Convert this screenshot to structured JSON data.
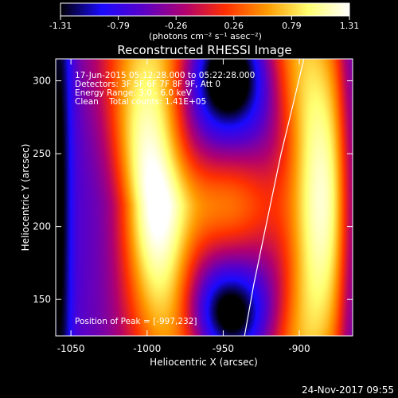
{
  "colorbar": {
    "ticks": [
      "-1.31",
      "-0.79",
      "-0.26",
      "0.26",
      "0.79",
      "1.31"
    ],
    "units_label": "(photons cm⁻² s⁻¹ asec⁻²)",
    "range": [
      -1.31,
      1.31
    ],
    "colormap": [
      "#000000",
      "#1a0aff",
      "#5a00c8",
      "#b00070",
      "#ff3000",
      "#ff9a00",
      "#ffff70",
      "#ffffff"
    ]
  },
  "plot": {
    "title": "Reconstructed RHESSI Image",
    "info_lines": [
      "17-Jun-2015 05:12:28.000 to 05:22:28.000",
      "Detectors: 3F 5F 6F 7F 8F 9F, Att 0",
      "Energy Range: 3.0 - 6.0 keV",
      "Clean    Total counts: 1.41E+05"
    ],
    "peak_label": "Position of Peak = [-997,232]",
    "footer_timestamp": "24-Nov-2017 09:55"
  },
  "chart_data": {
    "type": "heatmap",
    "title": "Reconstructed RHESSI Image",
    "xlabel": "Heliocentric X (arcsec)",
    "ylabel": "Heliocentric Y (arcsec)",
    "xlim": [
      -1060,
      -865
    ],
    "ylim": [
      125,
      315
    ],
    "xticks": [
      -1050,
      -1000,
      -950,
      -900
    ],
    "yticks": [
      150,
      200,
      250,
      300
    ],
    "xtick_labels": [
      "-1050",
      "-1000",
      "-950",
      "-900"
    ],
    "ytick_labels": [
      "150",
      "200",
      "250",
      "300"
    ],
    "colorbar_range": [
      -1.31,
      1.31
    ],
    "peak_position": [
      -997,
      232
    ],
    "limb_curve": [
      [
        -936,
        125
      ],
      [
        -930,
        160
      ],
      [
        -924,
        190
      ],
      [
        -918,
        220
      ],
      [
        -912,
        250
      ],
      [
        -905,
        280
      ],
      [
        -897,
        315
      ]
    ]
  }
}
